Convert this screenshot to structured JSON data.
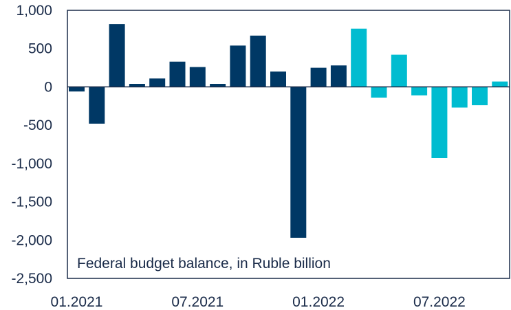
{
  "chart_data": {
    "type": "bar",
    "annotation": "Federal budget balance, in Ruble billion",
    "title": "",
    "xlabel": "",
    "ylabel": "",
    "ylim": [
      -2500,
      1000
    ],
    "yticks": [
      "1,000",
      "500",
      "0",
      "-500",
      "-1,000",
      "-1,500",
      "-2,000",
      "-2,500"
    ],
    "xtick_labels": [
      "01.2021",
      "07.2021",
      "01.2022",
      "07.2022"
    ],
    "categories": [
      "01.2021",
      "02.2021",
      "03.2021",
      "04.2021",
      "05.2021",
      "06.2021",
      "07.2021",
      "08.2021",
      "09.2021",
      "10.2021",
      "11.2021",
      "12.2021",
      "01.2022",
      "02.2022",
      "03.2022",
      "04.2022",
      "05.2022",
      "06.2022",
      "07.2022",
      "08.2022",
      "09.2022",
      "10.2022"
    ],
    "values": [
      -60,
      -480,
      820,
      40,
      110,
      330,
      260,
      40,
      540,
      670,
      200,
      -1970,
      250,
      280,
      760,
      -140,
      420,
      -110,
      -930,
      -270,
      -240,
      70
    ],
    "colors": {
      "dark": "#003865",
      "light": "#00bcd0",
      "axis": "#1a2b49",
      "frame": "#1a2b49"
    },
    "light_from_category": "03.2022",
    "grid": false
  }
}
